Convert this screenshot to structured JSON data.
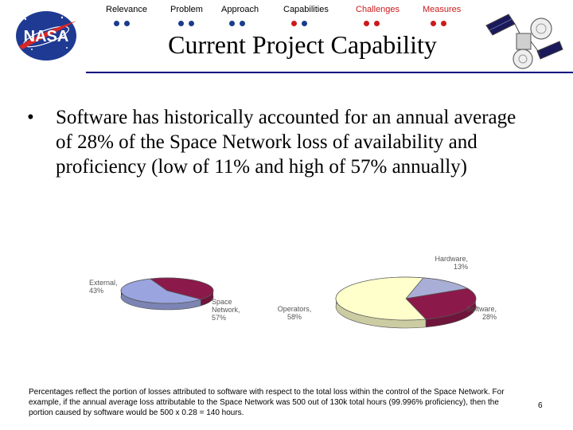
{
  "nav": {
    "items": [
      {
        "label": "Relevance",
        "color": "#000000",
        "dots": [
          "#1a3c8c",
          "#1a3c8c"
        ]
      },
      {
        "label": "Problem",
        "color": "#000000",
        "dots": [
          "#1a3c8c",
          "#1a3c8c"
        ]
      },
      {
        "label": "Approach",
        "color": "#000000",
        "dots": [
          "#1a3c8c",
          "#1a3c8c"
        ]
      },
      {
        "label": "Capabilities",
        "color": "#000000",
        "dots": [
          "#cc1a1a",
          "#1a3c8c"
        ]
      },
      {
        "label": "Challenges",
        "color": "#cc1a1a",
        "dots": [
          "#cc1a1a",
          "#cc1a1a"
        ]
      },
      {
        "label": "Measures",
        "color": "#cc1a1a",
        "dots": [
          "#cc1a1a",
          "#cc1a1a"
        ]
      }
    ]
  },
  "slide": {
    "title": "Current Project Capability",
    "bullet_symbol": "•",
    "bullet": "Software has historically accounted for an annual average of 28% of the Space Network loss of availability and proficiency (low of 11% and high of 57% annually)",
    "footnote": "Percentages reflect the portion of losses attributed to software with respect to the total loss within the control of the Space Network. For example, if the annual average loss attributable to the Space Network was 500 out of 130k total hours (99.996% proficiency), then the portion caused by software would be 500 x 0.28 = 140 hours.",
    "page_number": "6"
  },
  "logo": {
    "text": "NASA",
    "bg": "#1f3a93",
    "swoosh": "#d62828"
  },
  "chart_data": [
    {
      "type": "pie",
      "slices": [
        {
          "label": "External, 43%",
          "value": 43,
          "color": "#8b1a4a"
        },
        {
          "label": "Space Network, 57%",
          "value": 57,
          "color": "#9aa5e0"
        }
      ]
    },
    {
      "type": "pie",
      "slices": [
        {
          "label": "Hardware, 13%",
          "value": 13,
          "color": "#a9aed6"
        },
        {
          "label": "Software, 28%",
          "value": 28,
          "color": "#8b1a4a"
        },
        {
          "label": "Operators, 58%",
          "value": 58,
          "color": "#ffffcc"
        }
      ]
    }
  ]
}
